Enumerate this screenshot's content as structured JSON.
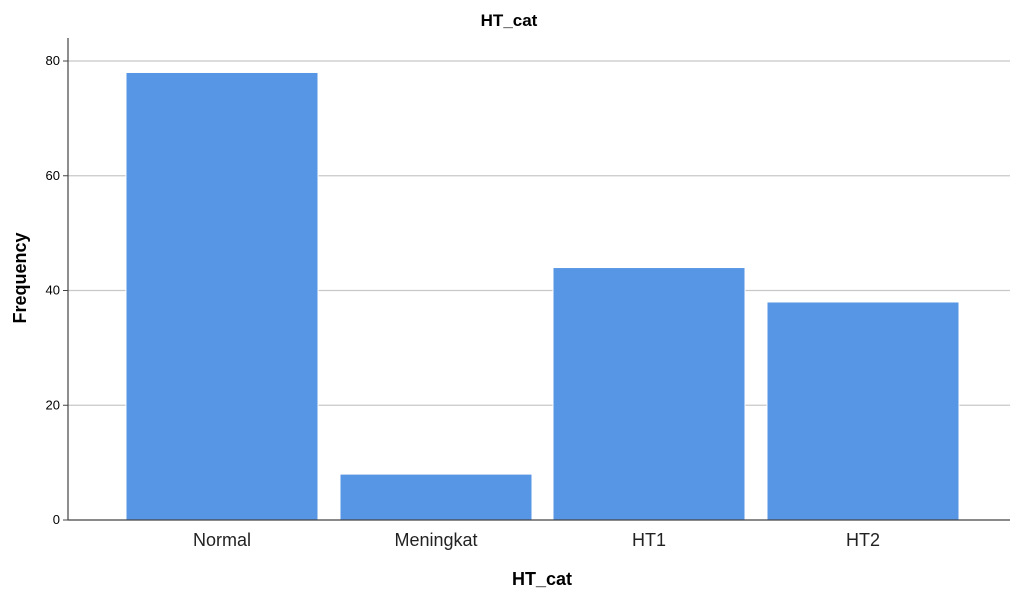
{
  "chart_data": {
    "type": "bar",
    "title": "HT_cat",
    "xlabel": "HT_cat",
    "ylabel": "Frequency",
    "categories": [
      "Normal",
      "Meningkat",
      "HT1",
      "HT2"
    ],
    "values": [
      78,
      8,
      44,
      38
    ],
    "ylim": [
      0,
      80
    ],
    "yticks": [
      0,
      20,
      40,
      60,
      80
    ],
    "grid": true,
    "bar_color": "#5796e4",
    "bar_edge_color": "#ffffff",
    "grid_color": "#c8c8c8",
    "axis_color": "#444444"
  }
}
